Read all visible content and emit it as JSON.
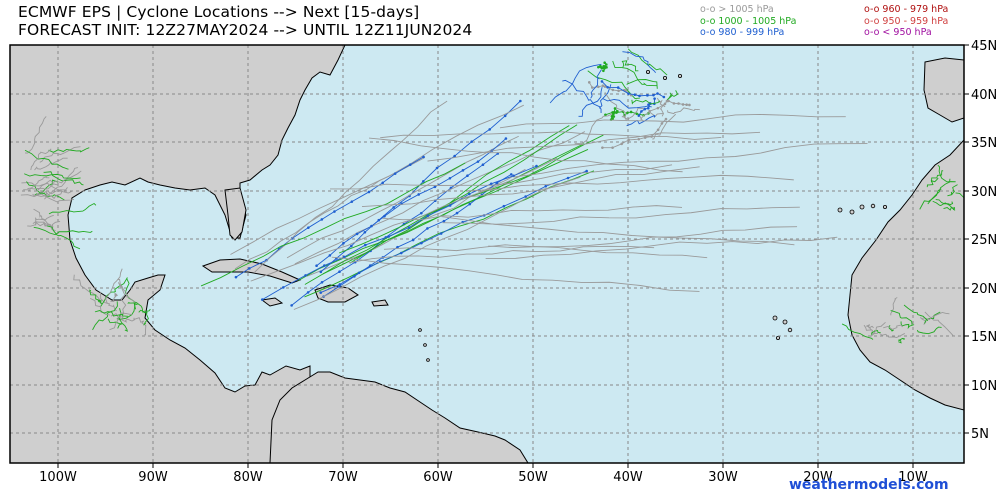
{
  "header": {
    "title_line1": "ECMWF EPS | Cyclone Locations --> Next [15-days]",
    "title_line2": "FORECAST INIT: 12Z27MAY2024 --> UNTIL 12Z11JUN2024"
  },
  "legend": {
    "left": [
      {
        "label": "o-o > 1005 hPa",
        "color": "#9a9a9a"
      },
      {
        "label": "o-o 1000 - 1005 hPa",
        "color": "#22aa22"
      },
      {
        "label": "o-o 980 - 999 hPa",
        "color": "#1f5fd0"
      }
    ],
    "right": [
      {
        "label": "o-o 960 - 979 hPa",
        "color": "#b01010"
      },
      {
        "label": "o-o 950 - 959 hPa",
        "color": "#d04040"
      },
      {
        "label": "o-o < 950 hPa",
        "color": "#a010a0"
      }
    ]
  },
  "axes": {
    "lon_labels": [
      "100W",
      "90W",
      "80W",
      "70W",
      "60W",
      "50W",
      "40W",
      "30W",
      "20W",
      "10W"
    ],
    "lat_labels": [
      "45N",
      "40N",
      "35N",
      "30N",
      "25N",
      "20N",
      "15N",
      "10N",
      "5N"
    ]
  },
  "credit": "weathermodels.com",
  "colors": {
    "ocean": "#cde9f2",
    "land": "#cfcfcf",
    "grid": "#888888",
    "track_weak": "#9a9a9a",
    "track_moderate": "#22aa22",
    "track_strong": "#1f5fd0"
  }
}
